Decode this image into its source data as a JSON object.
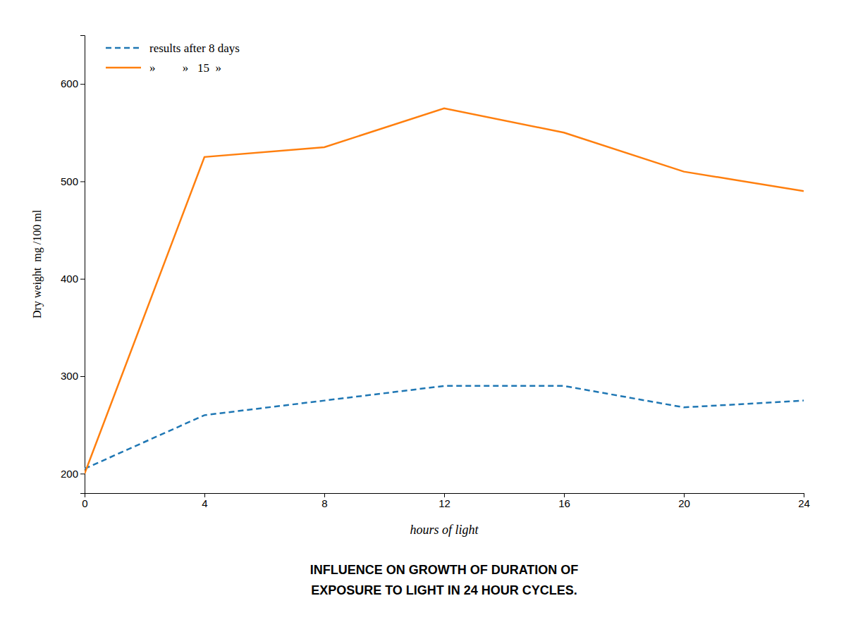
{
  "chart_data": {
    "type": "line",
    "title": "INFLUENCE ON GROWTH OF DURATION OF\nEXPOSURE TO LIGHT IN 24 HOUR CYCLES.",
    "x_label": "hours of light",
    "y_label": "Dry weight  mg /100 ml",
    "x": [
      0,
      4,
      8,
      12,
      16,
      20,
      24
    ],
    "series": [
      {
        "name": "results after 8 days",
        "values": [
          205,
          260,
          275,
          290,
          290,
          268,
          275
        ],
        "line_style": "dashed"
      },
      {
        "name": "»         »   15  »",
        "values": [
          200,
          525,
          535,
          575,
          550,
          510,
          490
        ],
        "line_style": "solid"
      }
    ],
    "xlim": [
      0,
      24
    ],
    "ylim": [
      180,
      650
    ],
    "xticks": [
      0,
      4,
      8,
      12,
      16,
      20,
      24
    ],
    "yticks": [
      200,
      300,
      400,
      500,
      600
    ],
    "grid": false,
    "legend": "upper left"
  }
}
